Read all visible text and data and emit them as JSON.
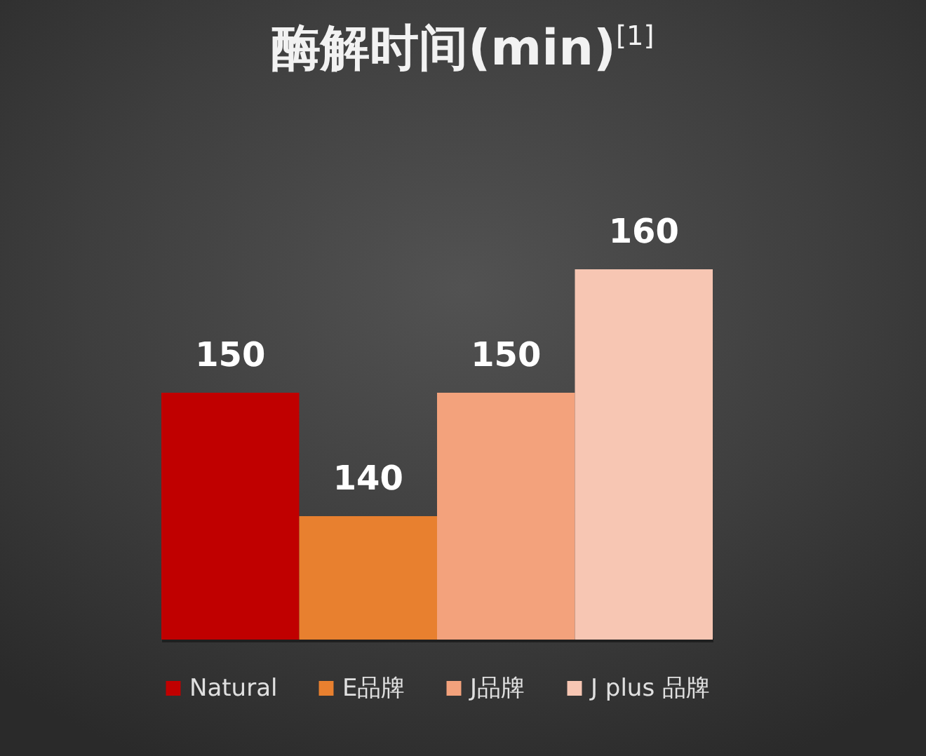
{
  "chart_data": {
    "type": "bar",
    "title": "酶解时间(min)$^{[1]}$",
    "categories": [
      null
    ],
    "series": [
      {
        "name": "Natural",
        "color": "#c00000",
        "values": [
          150
        ]
      },
      {
        "name": "E品牌",
        "color": "#e8802f",
        "values": [
          140
        ]
      },
      {
        "name": "J品牌",
        "color": "#f3a27c",
        "values": [
          150
        ]
      },
      {
        "name": "J plus 品牌",
        "color": "#f7c6b3",
        "values": [
          160
        ]
      }
    ],
    "ylim": [
      130,
      160
    ],
    "data_labels": true,
    "legend": "bottom",
    "tick_labels": false
  }
}
